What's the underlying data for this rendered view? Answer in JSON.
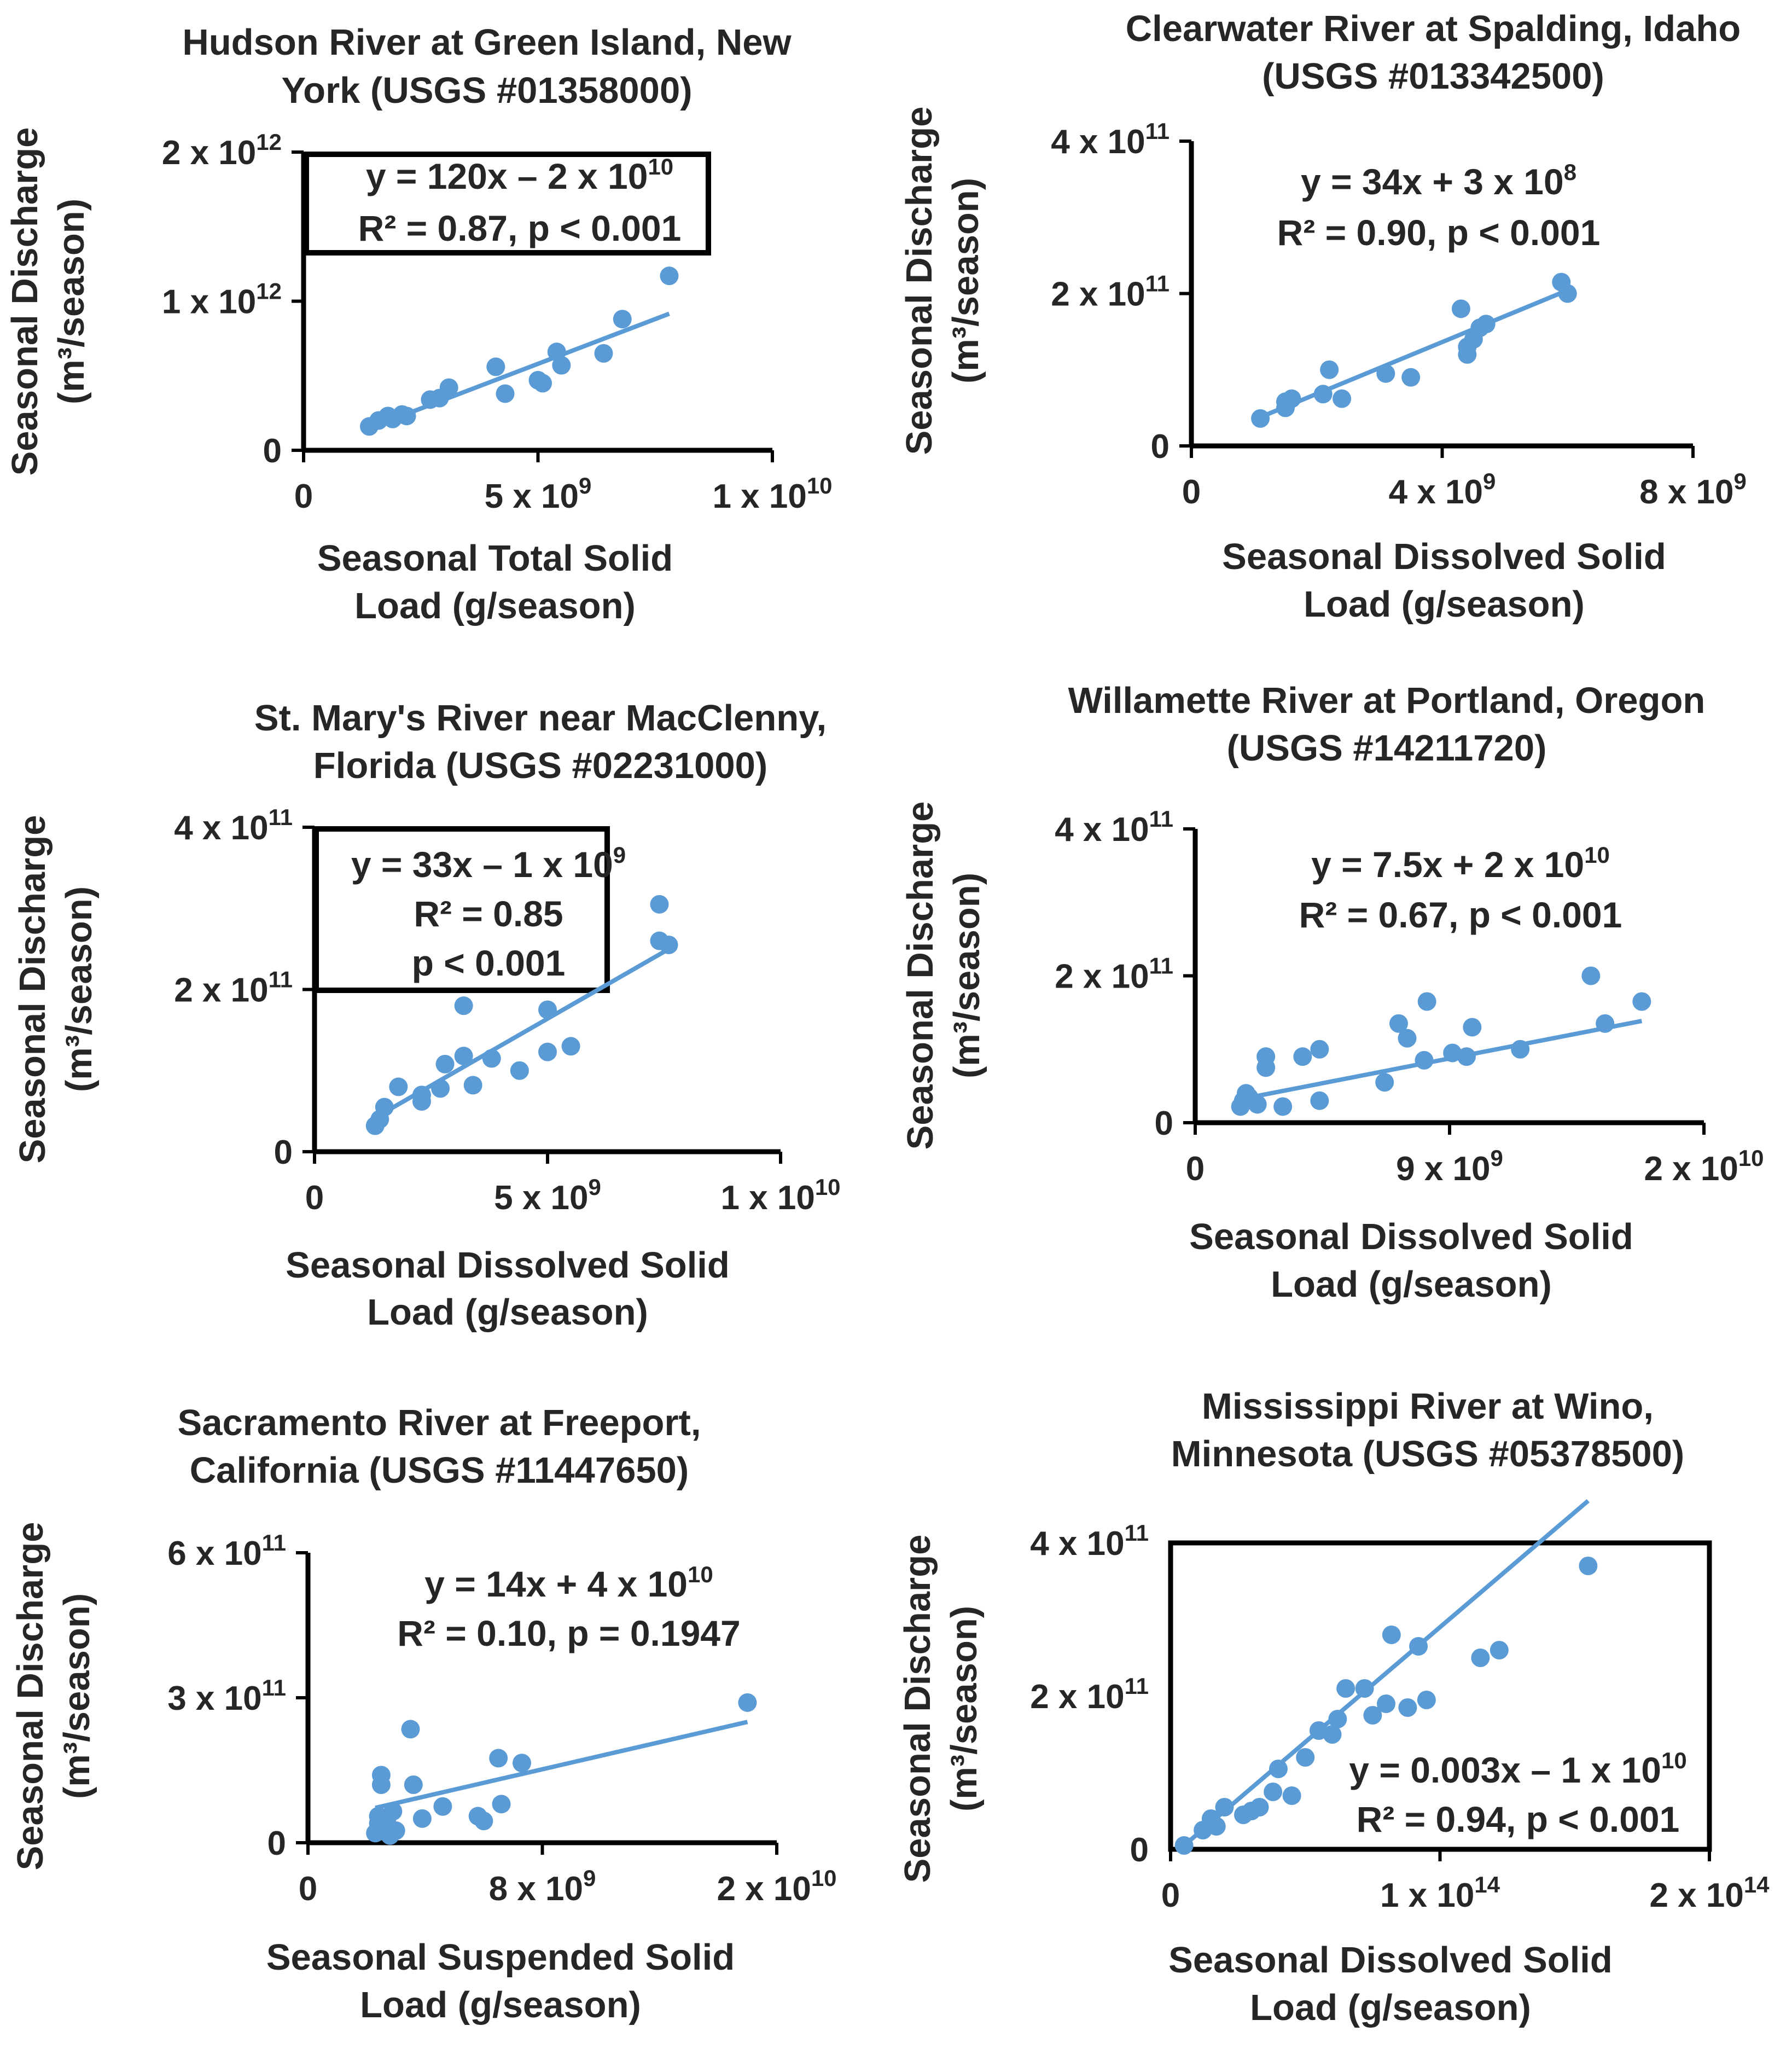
{
  "colors": {
    "marker": "#5b9bd5",
    "trendline": "#5b9bd5",
    "axis": "#000000",
    "text": "#262626"
  },
  "chart_data": [
    {
      "type": "scatter",
      "title": [
        "Hudson River at Green Island, New",
        "York (USGS #01358000)"
      ],
      "xlabel": [
        "Seasonal Total Solid",
        "Load (g/season)"
      ],
      "ylabel": [
        "Seasonal Discharge",
        "(m³/season)"
      ],
      "xlim": [
        0,
        10000000000
      ],
      "ylim": [
        0,
        2000000000000
      ],
      "xticks": [
        {
          "v": 0,
          "base": "0",
          "exp": ""
        },
        {
          "v": 5000000000,
          "base": "5 x 10",
          "exp": "9"
        },
        {
          "v": 10000000000,
          "base": "1 x 10",
          "exp": "10"
        }
      ],
      "yticks": [
        {
          "v": 0,
          "base": "0",
          "exp": ""
        },
        {
          "v": 1000000000000,
          "base": "1 x 10",
          "exp": "12"
        },
        {
          "v": 2000000000000,
          "base": "2 x 10",
          "exp": "12"
        }
      ],
      "equation": [
        {
          "base": "y = 120x – 2 x 10",
          "exp": "10"
        },
        {
          "base": "R² = 0.87, p < 0.001",
          "exp": ""
        }
      ],
      "trendline": {
        "slope": 120,
        "intercept": -20000000000,
        "x_range": [
          1400000000,
          7800000000
        ]
      },
      "points": [
        [
          1400000000,
          160000000000
        ],
        [
          1600000000,
          200000000000
        ],
        [
          1800000000,
          230000000000
        ],
        [
          1900000000,
          210000000000
        ],
        [
          2100000000,
          240000000000
        ],
        [
          2200000000,
          230000000000
        ],
        [
          2700000000,
          340000000000
        ],
        [
          2900000000,
          350000000000
        ],
        [
          3100000000,
          420000000000
        ],
        [
          4100000000,
          560000000000
        ],
        [
          4300000000,
          380000000000
        ],
        [
          5000000000,
          470000000000
        ],
        [
          5100000000,
          450000000000
        ],
        [
          5400000000,
          660000000000
        ],
        [
          5500000000,
          570000000000
        ],
        [
          6400000000,
          650000000000
        ],
        [
          6800000000,
          880000000000
        ],
        [
          7800000000,
          1170000000000
        ]
      ]
    },
    {
      "type": "scatter",
      "title": [
        "Clearwater River at Spalding, Idaho",
        "(USGS #013342500)"
      ],
      "xlabel": [
        "Seasonal Dissolved Solid",
        "Load (g/season)"
      ],
      "ylabel": [
        "Seasonal Discharge",
        "(m³/season)"
      ],
      "xlim": [
        0,
        8000000000
      ],
      "ylim": [
        0,
        400000000000
      ],
      "xticks": [
        {
          "v": 0,
          "base": "0",
          "exp": ""
        },
        {
          "v": 4000000000,
          "base": "4 x 10",
          "exp": "9"
        },
        {
          "v": 8000000000,
          "base": "8 x 10",
          "exp": "9"
        }
      ],
      "yticks": [
        {
          "v": 0,
          "base": "0",
          "exp": ""
        },
        {
          "v": 200000000000,
          "base": "2 x 10",
          "exp": "11"
        },
        {
          "v": 400000000000,
          "base": "4 x 10",
          "exp": "11"
        }
      ],
      "equation": [
        {
          "base": "y = 34x + 3 x 10",
          "exp": "8"
        },
        {
          "base": "R² = 0.90, p < 0.001",
          "exp": ""
        }
      ],
      "trendline": {
        "slope": 34,
        "intercept": 300000000,
        "x_range": [
          1100000000,
          5900000000
        ]
      },
      "points": [
        [
          1100000000,
          36000000000
        ],
        [
          1500000000,
          50000000000
        ],
        [
          1500000000,
          58000000000
        ],
        [
          1600000000,
          62000000000
        ],
        [
          2100000000,
          68000000000
        ],
        [
          2200000000,
          100000000000
        ],
        [
          2400000000,
          62000000000
        ],
        [
          3100000000,
          95000000000
        ],
        [
          3500000000,
          90000000000
        ],
        [
          4300000000,
          180000000000
        ],
        [
          4400000000,
          120000000000
        ],
        [
          4400000000,
          130000000000
        ],
        [
          4500000000,
          140000000000
        ],
        [
          4600000000,
          155000000000
        ],
        [
          4700000000,
          160000000000
        ],
        [
          5900000000,
          215000000000
        ],
        [
          6000000000,
          200000000000
        ]
      ]
    },
    {
      "type": "scatter",
      "title": [
        "St. Mary's River near MacClenny,",
        "Florida (USGS #02231000)"
      ],
      "xlabel": [
        "Seasonal Dissolved Solid",
        "Load (g/season)"
      ],
      "ylabel": [
        "Seasonal Discharge",
        "(m³/season)"
      ],
      "xlim": [
        0,
        10000000000
      ],
      "ylim": [
        0,
        400000000000
      ],
      "xticks": [
        {
          "v": 0,
          "base": "0",
          "exp": ""
        },
        {
          "v": 5000000000,
          "base": "5 x 10",
          "exp": "9"
        },
        {
          "v": 10000000000,
          "base": "1 x 10",
          "exp": "10"
        }
      ],
      "yticks": [
        {
          "v": 0,
          "base": "0",
          "exp": ""
        },
        {
          "v": 200000000000,
          "base": "2 x 10",
          "exp": "11"
        },
        {
          "v": 400000000000,
          "base": "4 x 10",
          "exp": "11"
        }
      ],
      "equation": [
        {
          "base": "y = 33x – 1 x 10",
          "exp": "9"
        },
        {
          "base": "R² = 0.85",
          "exp": ""
        },
        {
          "base": "p < 0.001",
          "exp": ""
        }
      ],
      "trendline": {
        "slope": 33,
        "intercept": -1000000000,
        "x_range": [
          1300000000,
          7600000000
        ]
      },
      "points": [
        [
          1300000000,
          32000000000
        ],
        [
          1400000000,
          40000000000
        ],
        [
          1500000000,
          55000000000
        ],
        [
          1800000000,
          80000000000
        ],
        [
          2300000000,
          70000000000
        ],
        [
          2300000000,
          62000000000
        ],
        [
          2700000000,
          78000000000
        ],
        [
          2800000000,
          108000000000
        ],
        [
          3200000000,
          180000000000
        ],
        [
          3200000000,
          118000000000
        ],
        [
          3400000000,
          82000000000
        ],
        [
          3800000000,
          115000000000
        ],
        [
          4400000000,
          100000000000
        ],
        [
          5000000000,
          123000000000
        ],
        [
          5000000000,
          175000000000
        ],
        [
          5500000000,
          130000000000
        ],
        [
          7400000000,
          305000000000
        ],
        [
          7400000000,
          260000000000
        ],
        [
          7600000000,
          255000000000
        ]
      ]
    },
    {
      "type": "scatter",
      "title": [
        "Willamette River at Portland, Oregon",
        "(USGS #14211720)"
      ],
      "xlabel": [
        "Seasonal Dissolved Solid",
        "Load  (g/season)"
      ],
      "ylabel": [
        "Seasonal Discharge",
        "(m³/season)"
      ],
      "xlim": [
        0,
        18000000000
      ],
      "ylim": [
        0,
        400000000000
      ],
      "xticks": [
        {
          "v": 0,
          "base": "0",
          "exp": ""
        },
        {
          "v": 9000000000,
          "base": "9 x 10",
          "exp": "9"
        },
        {
          "v": 18000000000,
          "base": "2 x 10",
          "exp": "10"
        }
      ],
      "yticks": [
        {
          "v": 0,
          "base": "0",
          "exp": ""
        },
        {
          "v": 200000000000,
          "base": "2 x 10",
          "exp": "11"
        },
        {
          "v": 400000000000,
          "base": "4 x 10",
          "exp": "11"
        }
      ],
      "equation": [
        {
          "base": "y = 7.5x + 2 x 10",
          "exp": "10"
        },
        {
          "base": "R² = 0.67, p < 0.001",
          "exp": ""
        }
      ],
      "trendline": {
        "slope": 7.5,
        "intercept": 20000000000,
        "x_range": [
          1600000000,
          15800000000
        ]
      },
      "points": [
        [
          1600000000,
          22000000000
        ],
        [
          1700000000,
          30000000000
        ],
        [
          1800000000,
          40000000000
        ],
        [
          1900000000,
          35000000000
        ],
        [
          2200000000,
          25000000000
        ],
        [
          2500000000,
          90000000000
        ],
        [
          2500000000,
          75000000000
        ],
        [
          3100000000,
          22000000000
        ],
        [
          3800000000,
          90000000000
        ],
        [
          4400000000,
          100000000000
        ],
        [
          4400000000,
          30000000000
        ],
        [
          6700000000,
          55000000000
        ],
        [
          7200000000,
          135000000000
        ],
        [
          7500000000,
          115000000000
        ],
        [
          8100000000,
          85000000000
        ],
        [
          8200000000,
          165000000000
        ],
        [
          9100000000,
          95000000000
        ],
        [
          9600000000,
          90000000000
        ],
        [
          9800000000,
          130000000000
        ],
        [
          11500000000,
          100000000000
        ],
        [
          14000000000,
          200000000000
        ],
        [
          14500000000,
          135000000000
        ],
        [
          15800000000,
          165000000000
        ]
      ]
    },
    {
      "type": "scatter",
      "title": [
        "Sacramento River at Freeport,",
        "California (USGS #11447650)"
      ],
      "xlabel": [
        "Seasonal Suspended Solid",
        "Load (g/season)"
      ],
      "ylabel": [
        "Seasonal Discharge",
        "(m³/season)"
      ],
      "xlim": [
        0,
        16000000000
      ],
      "ylim": [
        0,
        600000000000
      ],
      "xticks": [
        {
          "v": 0,
          "base": "0",
          "exp": ""
        },
        {
          "v": 8000000000,
          "base": "8 x 10",
          "exp": "9"
        },
        {
          "v": 16000000000,
          "base": "2 x 10",
          "exp": "10"
        }
      ],
      "yticks": [
        {
          "v": 0,
          "base": "0",
          "exp": ""
        },
        {
          "v": 300000000000,
          "base": "3 x 10",
          "exp": "11"
        },
        {
          "v": 600000000000,
          "base": "6 x 10",
          "exp": "11"
        }
      ],
      "equation": [
        {
          "base": "y = 14x + 4 x 10",
          "exp": "10"
        },
        {
          "base": "R² = 0.10, p = 0.1947",
          "exp": ""
        }
      ],
      "trendline": {
        "slope": 14,
        "intercept": 40000000000,
        "x_range": [
          2300000000,
          15000000000
        ]
      },
      "points": [
        [
          2300000000,
          20000000000
        ],
        [
          2400000000,
          40000000000
        ],
        [
          2400000000,
          55000000000
        ],
        [
          2500000000,
          140000000000
        ],
        [
          2500000000,
          120000000000
        ],
        [
          2600000000,
          30000000000
        ],
        [
          2700000000,
          50000000000
        ],
        [
          2800000000,
          15000000000
        ],
        [
          2900000000,
          65000000000
        ],
        [
          3000000000,
          25000000000
        ],
        [
          3500000000,
          235000000000
        ],
        [
          3600000000,
          120000000000
        ],
        [
          3900000000,
          50000000000
        ],
        [
          4600000000,
          75000000000
        ],
        [
          5800000000,
          55000000000
        ],
        [
          6000000000,
          45000000000
        ],
        [
          6500000000,
          175000000000
        ],
        [
          6600000000,
          80000000000
        ],
        [
          7300000000,
          165000000000
        ],
        [
          15000000000,
          290000000000
        ]
      ]
    },
    {
      "type": "scatter",
      "title": [
        "Mississippi River at Wino,",
        "Minnesota (USGS #05378500)"
      ],
      "xlabel": [
        "Seasonal Dissolved Solid",
        "Load (g/season)"
      ],
      "ylabel": [
        "Seasonal Discharge",
        "(m³/season)"
      ],
      "xlim": [
        0,
        200000000000000
      ],
      "ylim": [
        0,
        400000000000
      ],
      "xticks": [
        {
          "v": 0,
          "base": "0",
          "exp": ""
        },
        {
          "v": 100000000000000,
          "base": "1 x 10",
          "exp": "14"
        },
        {
          "v": 200000000000000,
          "base": "2 x 10",
          "exp": "14"
        }
      ],
      "yticks": [
        {
          "v": 0,
          "base": "0",
          "exp": ""
        },
        {
          "v": 200000000000,
          "base": "2 x 10",
          "exp": "11"
        },
        {
          "v": 400000000000,
          "base": "4 x 10",
          "exp": "11"
        }
      ],
      "equation": [
        {
          "base": "y = 0.003x – 1 x 10",
          "exp": "10"
        },
        {
          "base": "R² = 0.94, p < 0.001",
          "exp": ""
        }
      ],
      "trendline": {
        "slope": 0.003,
        "intercept": -10000000000,
        "x_range": [
          5000000000000,
          155000000000000
        ]
      },
      "points": [
        [
          5000000000000,
          5000000000
        ],
        [
          12000000000000,
          25000000000
        ],
        [
          15000000000000,
          40000000000
        ],
        [
          17000000000000,
          30000000000
        ],
        [
          20000000000000,
          55000000000
        ],
        [
          27000000000000,
          45000000000
        ],
        [
          30000000000000,
          50000000000
        ],
        [
          33000000000000,
          55000000000
        ],
        [
          38000000000000,
          75000000000
        ],
        [
          40000000000000,
          105000000000
        ],
        [
          45000000000000,
          70000000000
        ],
        [
          50000000000000,
          120000000000
        ],
        [
          55000000000000,
          155000000000
        ],
        [
          60000000000000,
          150000000000
        ],
        [
          62000000000000,
          170000000000
        ],
        [
          65000000000000,
          210000000000
        ],
        [
          72000000000000,
          210000000000
        ],
        [
          75000000000000,
          175000000000
        ],
        [
          80000000000000,
          190000000000
        ],
        [
          82000000000000,
          280000000000
        ],
        [
          88000000000000,
          185000000000
        ],
        [
          92000000000000,
          265000000000
        ],
        [
          95000000000000,
          195000000000
        ],
        [
          115000000000000,
          250000000000
        ],
        [
          122000000000000,
          260000000000
        ],
        [
          155000000000000,
          370000000000
        ]
      ]
    }
  ]
}
